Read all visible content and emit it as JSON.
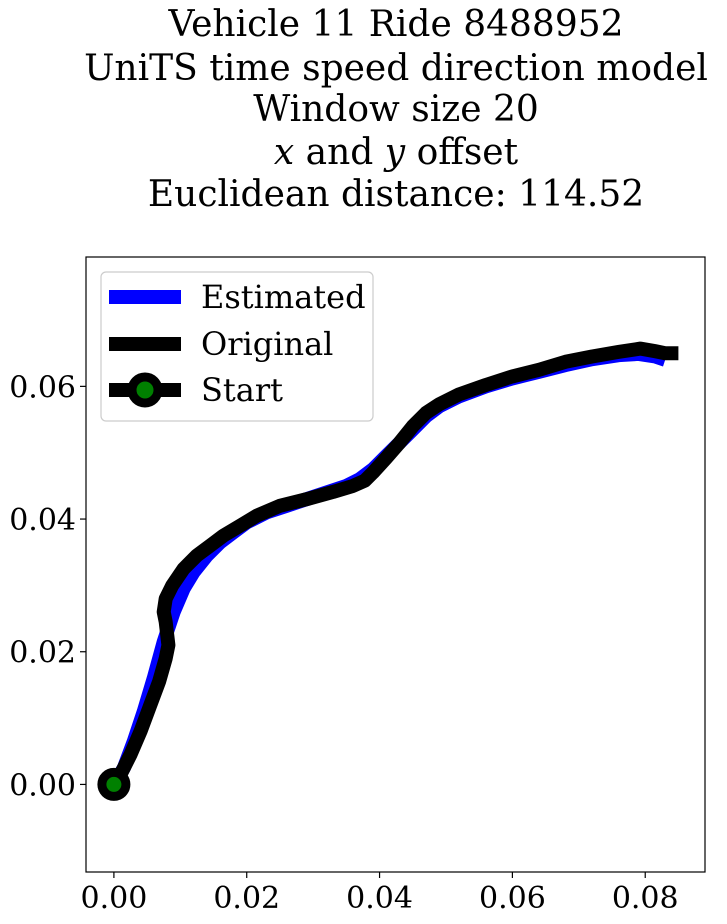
{
  "chart_data": {
    "type": "line",
    "title_lines": [
      "Vehicle 11 Ride 8488952",
      "UniTS time speed direction model",
      "Window size 20",
      "x and y offset",
      "Euclidean distance: 114.52"
    ],
    "title_italic_line": {
      "prefix_italic": "x",
      "middle": " and ",
      "italic2": "y",
      "suffix": " offset"
    },
    "xlabel": "",
    "ylabel": "",
    "xlim": [
      -0.0042,
      0.089
    ],
    "ylim": [
      -0.0132,
      0.0795
    ],
    "x_ticks": [
      0.0,
      0.02,
      0.04,
      0.06,
      0.08
    ],
    "x_tick_labels": [
      "0.00",
      "0.02",
      "0.04",
      "0.06",
      "0.08"
    ],
    "y_ticks": [
      0.0,
      0.02,
      0.04,
      0.06
    ],
    "y_tick_labels": [
      "0.00",
      "0.02",
      "0.04",
      "0.06"
    ],
    "grid": false,
    "legend_position": "top-left",
    "legend": [
      "Estimated",
      "Original",
      "Start"
    ],
    "series": [
      {
        "name": "Estimated",
        "color": "#0000ff",
        "points": [
          [
            0.0,
            0.0
          ],
          [
            0.0015,
            0.0025
          ],
          [
            0.003,
            0.0065
          ],
          [
            0.0045,
            0.011
          ],
          [
            0.006,
            0.016
          ],
          [
            0.0075,
            0.0215
          ],
          [
            0.009,
            0.026
          ],
          [
            0.0105,
            0.0295
          ],
          [
            0.012,
            0.032
          ],
          [
            0.014,
            0.0345
          ],
          [
            0.016,
            0.0365
          ],
          [
            0.018,
            0.038
          ],
          [
            0.02,
            0.0395
          ],
          [
            0.023,
            0.041
          ],
          [
            0.026,
            0.042
          ],
          [
            0.029,
            0.043
          ],
          [
            0.032,
            0.044
          ],
          [
            0.035,
            0.045
          ],
          [
            0.037,
            0.046
          ],
          [
            0.039,
            0.0475
          ],
          [
            0.041,
            0.0495
          ],
          [
            0.043,
            0.0515
          ],
          [
            0.045,
            0.0535
          ],
          [
            0.047,
            0.0555
          ],
          [
            0.049,
            0.057
          ],
          [
            0.052,
            0.0585
          ],
          [
            0.056,
            0.06
          ],
          [
            0.06,
            0.0612
          ],
          [
            0.064,
            0.0622
          ],
          [
            0.068,
            0.0632
          ],
          [
            0.072,
            0.0641
          ],
          [
            0.076,
            0.0647
          ],
          [
            0.079,
            0.0649
          ],
          [
            0.0815,
            0.0645
          ],
          [
            0.083,
            0.064
          ]
        ]
      },
      {
        "name": "Original",
        "color": "#000000",
        "points": [
          [
            0.0,
            0.0
          ],
          [
            0.001,
            0.0015
          ],
          [
            0.0025,
            0.0045
          ],
          [
            0.004,
            0.008
          ],
          [
            0.0055,
            0.012
          ],
          [
            0.0068,
            0.0155
          ],
          [
            0.0078,
            0.019
          ],
          [
            0.0082,
            0.021
          ],
          [
            0.0078,
            0.0245
          ],
          [
            0.0075,
            0.026
          ],
          [
            0.0078,
            0.028
          ],
          [
            0.0088,
            0.03
          ],
          [
            0.0105,
            0.0325
          ],
          [
            0.0125,
            0.0345
          ],
          [
            0.0145,
            0.036
          ],
          [
            0.0165,
            0.0375
          ],
          [
            0.019,
            0.039
          ],
          [
            0.0215,
            0.0405
          ],
          [
            0.025,
            0.042
          ],
          [
            0.029,
            0.043
          ],
          [
            0.033,
            0.0441
          ],
          [
            0.036,
            0.045
          ],
          [
            0.0378,
            0.0458
          ],
          [
            0.039,
            0.047
          ],
          [
            0.041,
            0.0492
          ],
          [
            0.043,
            0.0515
          ],
          [
            0.045,
            0.054
          ],
          [
            0.047,
            0.056
          ],
          [
            0.049,
            0.0573
          ],
          [
            0.052,
            0.0588
          ],
          [
            0.056,
            0.0602
          ],
          [
            0.06,
            0.0615
          ],
          [
            0.064,
            0.0625
          ],
          [
            0.068,
            0.0637
          ],
          [
            0.072,
            0.0645
          ],
          [
            0.076,
            0.0652
          ],
          [
            0.0793,
            0.0657
          ],
          [
            0.0815,
            0.0653
          ],
          [
            0.083,
            0.065
          ],
          [
            0.085,
            0.065
          ]
        ]
      }
    ],
    "start_point": {
      "x": 0.0,
      "y": 0.0,
      "marker_color": "#008000",
      "edge_color": "#000000"
    }
  }
}
